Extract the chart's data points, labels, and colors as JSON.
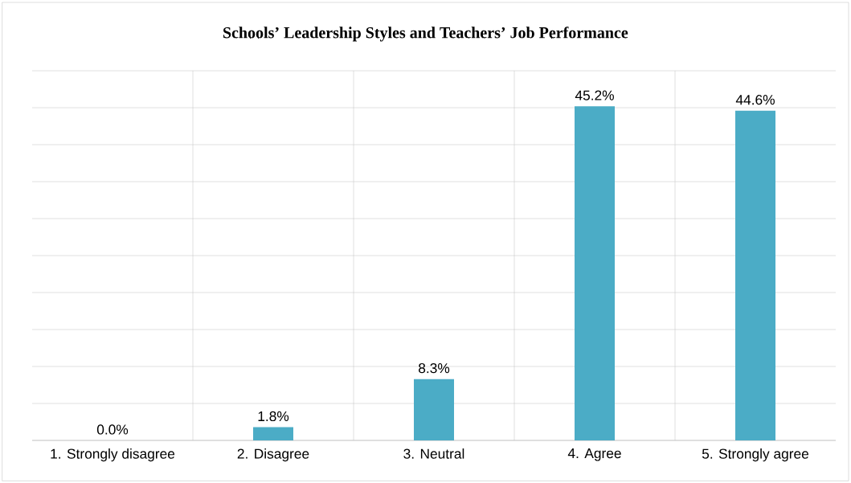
{
  "chart_data": {
    "type": "bar",
    "title": "Schools’ Leadership Styles and Teachers’ Job Performance",
    "categories": [
      "1. Strongly disagree",
      "2. Disagree",
      "3. Neutral",
      "4. Agree",
      "5. Strongly agree"
    ],
    "values": [
      0.0,
      1.8,
      8.3,
      45.2,
      44.6
    ],
    "value_labels": [
      "0.0%",
      "1.8%",
      "8.3%",
      "45.2%",
      "44.6%"
    ],
    "color": "#4bacc6",
    "ylim": [
      0,
      50
    ],
    "yticks": [
      0,
      5,
      10,
      15,
      20,
      25,
      30,
      35,
      40,
      45,
      50
    ],
    "tick_labels": "x",
    "grid": true
  }
}
